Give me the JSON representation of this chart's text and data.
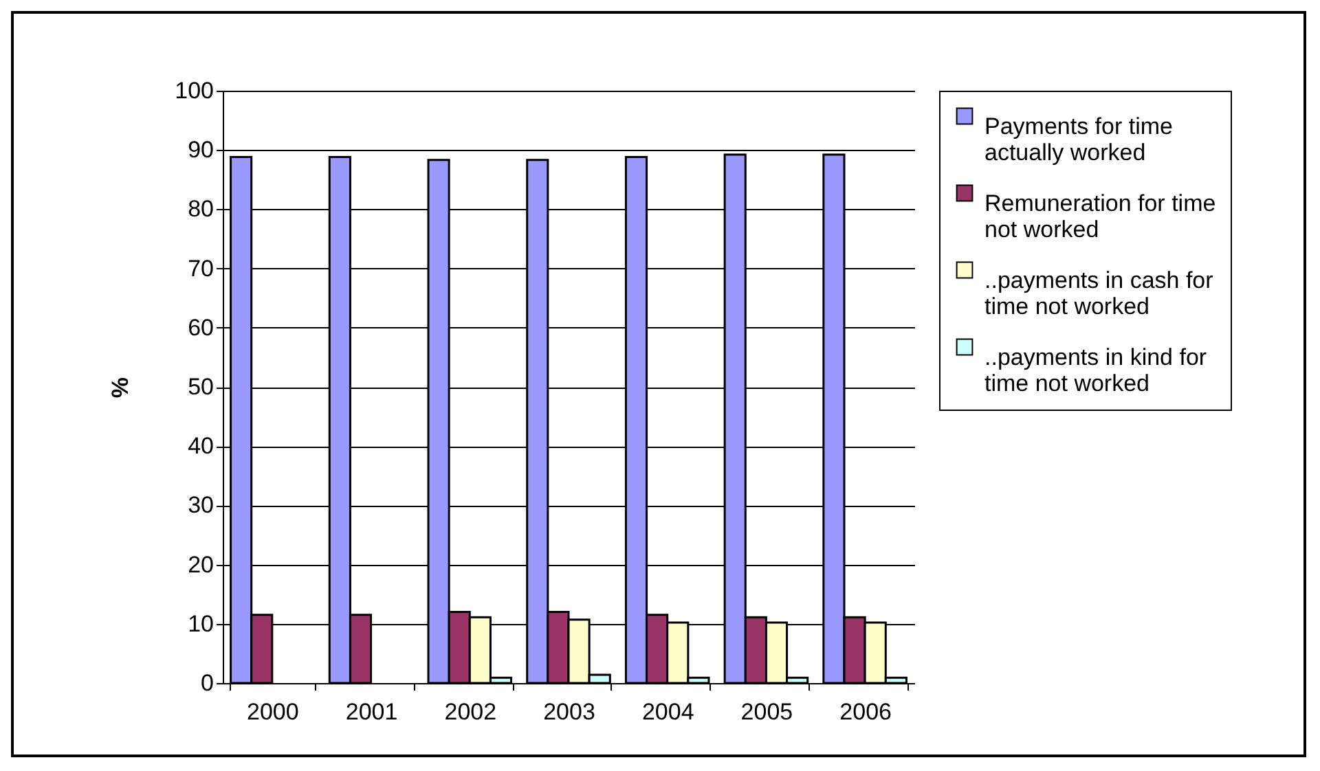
{
  "chart_data": {
    "type": "bar",
    "ylabel": "%",
    "categories": [
      "2000",
      "2001",
      "2002",
      "2003",
      "2004",
      "2005",
      "2006"
    ],
    "series": [
      {
        "name": "Payments for time actually worked",
        "color": "#9999ff",
        "values": [
          88.8,
          88.8,
          88.3,
          88.3,
          88.8,
          89.2,
          89.2
        ]
      },
      {
        "name": "Remuneration for time not worked",
        "color": "#993366",
        "values": [
          11.5,
          11.5,
          12.0,
          12.0,
          11.5,
          11.1,
          11.1
        ]
      },
      {
        "name": "..payments in cash for time not worked",
        "color": "#ffffcc",
        "values": [
          null,
          null,
          11.1,
          10.7,
          10.2,
          10.2,
          10.2
        ]
      },
      {
        "name": "..payments in kind for time not worked",
        "color": "#ccffff",
        "values": [
          null,
          null,
          0.9,
          1.4,
          0.9,
          0.9,
          0.9
        ]
      }
    ],
    "ylim": [
      0,
      100
    ],
    "yticks": [
      0,
      10,
      20,
      30,
      40,
      50,
      60,
      70,
      80,
      90,
      100
    ],
    "grid": "y",
    "legend": "right"
  }
}
